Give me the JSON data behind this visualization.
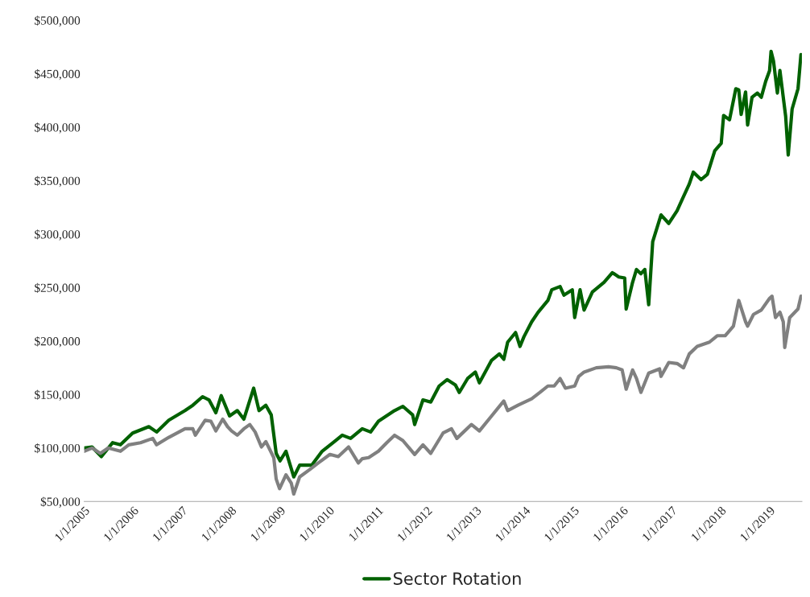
{
  "chart_data": {
    "type": "line",
    "xlim": [
      "2005-01-01",
      "2019-08-30"
    ],
    "xticks": [
      {
        "value": "2005-01-01",
        "label": "1/1/2005"
      },
      {
        "value": "2006-01-01",
        "label": "1/1/2006"
      },
      {
        "value": "2007-01-01",
        "label": "1/1/2007"
      },
      {
        "value": "2008-01-01",
        "label": "1/1/2008"
      },
      {
        "value": "2009-01-01",
        "label": "1/1/2009"
      },
      {
        "value": "2010-01-01",
        "label": "1/1/2010"
      },
      {
        "value": "2011-01-01",
        "label": "1/1/2011"
      },
      {
        "value": "2012-01-01",
        "label": "1/1/2012"
      },
      {
        "value": "2013-01-01",
        "label": "1/1/2013"
      },
      {
        "value": "2014-01-01",
        "label": "1/1/2014"
      },
      {
        "value": "2015-01-01",
        "label": "1/1/2015"
      },
      {
        "value": "2016-01-01",
        "label": "1/1/2016"
      },
      {
        "value": "2017-01-01",
        "label": "1/1/2017"
      },
      {
        "value": "2018-01-01",
        "label": "1/1/2018"
      },
      {
        "value": "2019-01-01",
        "label": "1/1/2019"
      }
    ],
    "ylim": [
      50000,
      500000
    ],
    "yticks": [
      {
        "value": 50000,
        "label": "$50,000"
      },
      {
        "value": 100000,
        "label": "$100,000"
      },
      {
        "value": 150000,
        "label": "$150,000"
      },
      {
        "value": 200000,
        "label": "$200,000"
      },
      {
        "value": 250000,
        "label": "$250,000"
      },
      {
        "value": 300000,
        "label": "$300,000"
      },
      {
        "value": 350000,
        "label": "$350,000"
      },
      {
        "value": 400000,
        "label": "$400,000"
      },
      {
        "value": 450000,
        "label": "$450,000"
      },
      {
        "value": 500000,
        "label": "$500,000"
      }
    ],
    "grid": false,
    "legend": "bottom",
    "marker": "none",
    "line_style": "solid",
    "series": [
      {
        "name": "Sector Rotation",
        "color": "#006100",
        "x": [
          "2005-01-01",
          "2005-02-28",
          "2005-05-09",
          "2005-08-01",
          "2005-09-28",
          "2005-12-28",
          "2006-04-28",
          "2006-06-25",
          "2006-09-24",
          "2007-01-23",
          "2007-03-22",
          "2007-06-03",
          "2007-07-21",
          "2007-09-10",
          "2007-10-20",
          "2007-12-21",
          "2008-02-17",
          "2008-04-06",
          "2008-06-18",
          "2008-07-28",
          "2008-09-17",
          "2008-10-27",
          "2008-12-03",
          "2009-01-01",
          "2009-02-14",
          "2009-04-13",
          "2009-05-27",
          "2009-08-26",
          "2009-11-11",
          "2010-02-10",
          "2010-04-10",
          "2010-06-11",
          "2010-09-06",
          "2010-11-07",
          "2011-01-05",
          "2011-05-05",
          "2011-07-06",
          "2011-09-17",
          "2011-10-02",
          "2011-12-03",
          "2012-01-30",
          "2012-04-02",
          "2012-05-31",
          "2012-08-01",
          "2012-08-30",
          "2012-10-31",
          "2012-12-28",
          "2013-01-27",
          "2013-04-28",
          "2013-06-25",
          "2013-07-28",
          "2013-08-26",
          "2013-10-24",
          "2013-11-26",
          "2013-12-25",
          "2014-02-21",
          "2014-04-10",
          "2014-06-22",
          "2014-07-21",
          "2014-09-21",
          "2014-10-20",
          "2014-12-21",
          "2015-01-08",
          "2015-02-17",
          "2015-03-19",
          "2015-05-20",
          "2015-08-15",
          "2015-10-16",
          "2015-12-03",
          "2016-01-16",
          "2016-01-27",
          "2016-03-15",
          "2016-04-13",
          "2016-05-16",
          "2016-06-14",
          "2016-07-13",
          "2016-08-12",
          "2016-10-13",
          "2016-12-10",
          "2017-02-10",
          "2017-03-22",
          "2017-05-12",
          "2017-06-11",
          "2017-08-08",
          "2017-09-24",
          "2017-11-18",
          "2018-01-05",
          "2018-01-23",
          "2018-03-08",
          "2018-04-24",
          "2018-05-16",
          "2018-06-03",
          "2018-07-06",
          "2018-07-21",
          "2018-08-23",
          "2018-10-02",
          "2018-10-31",
          "2018-12-03",
          "2019-01-01",
          "2019-01-12",
          "2019-01-30",
          "2019-02-28",
          "2019-03-19",
          "2019-04-13",
          "2019-05-01",
          "2019-05-20",
          "2019-06-18",
          "2019-08-01",
          "2019-08-23"
        ],
        "values": [
          100000,
          101000,
          92000,
          105000,
          103000,
          114000,
          120000,
          115000,
          126000,
          135000,
          140000,
          148000,
          145000,
          133000,
          149000,
          130000,
          135000,
          127000,
          156000,
          135000,
          140000,
          131000,
          95000,
          88000,
          97000,
          73000,
          84000,
          84000,
          97000,
          106000,
          112000,
          109000,
          118000,
          115000,
          125000,
          135000,
          139000,
          131000,
          122000,
          145000,
          143000,
          158000,
          164000,
          159000,
          152000,
          165000,
          171000,
          161000,
          182000,
          188000,
          183000,
          199000,
          208000,
          195000,
          204000,
          218000,
          227000,
          238000,
          248000,
          251000,
          243000,
          248000,
          222000,
          248000,
          229000,
          246000,
          255000,
          264000,
          260000,
          259000,
          230000,
          255000,
          267000,
          263000,
          267000,
          234000,
          293000,
          318000,
          310000,
          322000,
          333000,
          347000,
          358000,
          351000,
          356000,
          378000,
          385000,
          411000,
          407000,
          436000,
          435000,
          412000,
          433000,
          402000,
          428000,
          432000,
          428000,
          443000,
          453000,
          471000,
          462000,
          432000,
          453000,
          428000,
          410000,
          374000,
          417000,
          436000,
          468000
        ]
      },
      {
        "color": "#808080",
        "x": [
          "2005-01-01",
          "2005-02-28",
          "2005-05-01",
          "2005-06-29",
          "2005-09-28",
          "2005-11-29",
          "2006-02-25",
          "2006-05-27",
          "2006-06-25",
          "2006-09-24",
          "2007-01-23",
          "2007-03-22",
          "2007-04-10",
          "2007-06-22",
          "2007-08-04",
          "2007-09-10",
          "2007-10-31",
          "2007-12-06",
          "2008-01-05",
          "2008-02-17",
          "2008-04-06",
          "2008-05-20",
          "2008-06-29",
          "2008-08-15",
          "2008-09-17",
          "2008-11-15",
          "2008-12-03",
          "2008-12-28",
          "2009-02-14",
          "2009-03-26",
          "2009-04-13",
          "2009-05-27",
          "2009-08-12",
          "2009-10-13",
          "2010-01-08",
          "2010-03-11",
          "2010-05-27",
          "2010-08-08",
          "2010-09-06",
          "2010-10-24",
          "2011-01-05",
          "2011-03-08",
          "2011-05-05",
          "2011-07-06",
          "2011-10-02",
          "2011-12-03",
          "2012-01-30",
          "2012-05-01",
          "2012-07-03",
          "2012-08-12",
          "2012-11-29",
          "2013-01-27",
          "2013-04-28",
          "2013-07-28",
          "2013-08-26",
          "2013-11-11",
          "2014-02-21",
          "2014-04-24",
          "2014-06-22",
          "2014-08-08",
          "2014-09-21",
          "2014-10-31",
          "2015-01-08",
          "2015-02-07",
          "2015-03-19",
          "2015-06-18",
          "2015-09-17",
          "2015-11-15",
          "2015-12-28",
          "2016-01-27",
          "2016-03-15",
          "2016-04-13",
          "2016-05-16",
          "2016-07-13",
          "2016-10-02",
          "2016-10-13",
          "2016-12-10",
          "2017-02-10",
          "2017-03-30",
          "2017-05-12",
          "2017-07-10",
          "2017-10-09",
          "2017-12-06",
          "2018-02-03",
          "2018-04-06",
          "2018-05-16",
          "2018-07-06",
          "2018-07-21",
          "2018-09-03",
          "2018-10-31",
          "2019-01-01",
          "2019-01-19",
          "2019-02-14",
          "2019-03-19",
          "2019-04-13",
          "2019-04-24",
          "2019-05-31",
          "2019-08-01",
          "2019-08-23"
        ],
        "values": [
          97000,
          100000,
          95000,
          100000,
          97000,
          103000,
          105000,
          109000,
          103000,
          110000,
          118000,
          118000,
          112000,
          126000,
          125000,
          116000,
          127000,
          120000,
          116000,
          112000,
          118000,
          122000,
          115000,
          101000,
          106000,
          91000,
          71000,
          62000,
          75000,
          67000,
          57000,
          73000,
          80000,
          86000,
          94000,
          92000,
          101000,
          86000,
          90000,
          91000,
          97000,
          105000,
          112000,
          107000,
          94000,
          103000,
          95000,
          114000,
          118000,
          109000,
          122000,
          116000,
          130000,
          144000,
          135000,
          140000,
          146000,
          152000,
          158000,
          158000,
          165000,
          156000,
          158000,
          167000,
          171000,
          175000,
          176000,
          175000,
          173000,
          155000,
          173000,
          165000,
          152000,
          170000,
          174000,
          167000,
          180000,
          179000,
          175000,
          188000,
          195000,
          199000,
          205000,
          205000,
          214000,
          238000,
          218000,
          214000,
          225000,
          229000,
          240000,
          242000,
          222000,
          227000,
          218000,
          194000,
          222000,
          230000,
          242000
        ]
      }
    ]
  }
}
